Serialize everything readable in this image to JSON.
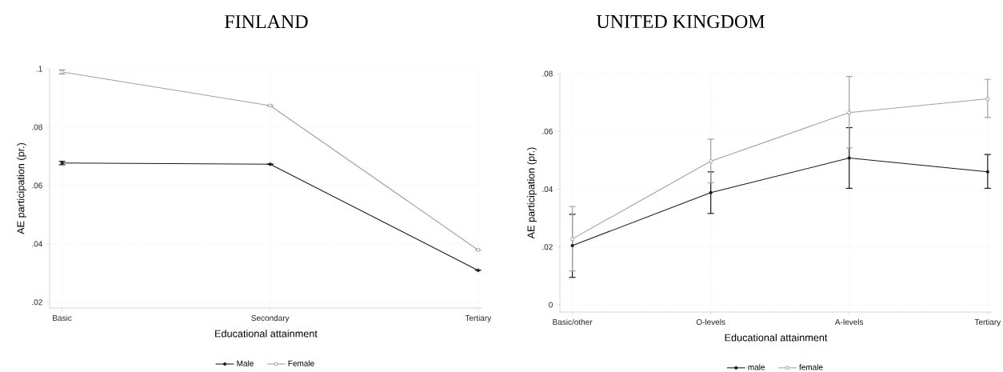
{
  "chart_data": [
    {
      "type": "line",
      "title": "FINLAND",
      "xlabel": "Educational attainment",
      "ylabel": "AE participation (pr.)",
      "categories": [
        "Basic",
        "Secondary",
        "Tertiary"
      ],
      "series": [
        {
          "name": "Male",
          "color": "#1a1a1a",
          "marker": "circle",
          "values": [
            0.0677,
            0.0673,
            0.0309
          ],
          "errors": [
            0.0006,
            null,
            null
          ]
        },
        {
          "name": "Female",
          "color": "#a0a0a0",
          "marker": "square",
          "values": [
            0.0989,
            0.0874,
            0.0379
          ],
          "errors": [
            0.0007,
            null,
            null
          ]
        }
      ],
      "ylim": [
        0.018,
        0.1
      ],
      "yticks": [
        {
          "value": 0.02,
          "label": ".02"
        },
        {
          "value": 0.04,
          "label": ".04"
        },
        {
          "value": 0.06,
          "label": ".06"
        },
        {
          "value": 0.08,
          "label": ".08"
        },
        {
          "value": 0.1,
          "label": ".1"
        }
      ],
      "grid": true,
      "legend": "bottom",
      "line_style": "solid"
    },
    {
      "type": "line",
      "title": "UNITED KINGDOM",
      "xlabel": "Educational attainment",
      "ylabel": "AE participation (pr.)",
      "categories": [
        "Basic/other",
        "O-levels",
        "A-levels",
        "Tertiary"
      ],
      "series": [
        {
          "name": "male",
          "color": "#1a1a1a",
          "marker": "circle",
          "values": [
            0.0205,
            0.0388,
            0.0508,
            0.046
          ],
          "errors": [
            [
              0.0095,
              0.0313
            ],
            [
              0.0316,
              0.046
            ],
            [
              0.0403,
              0.0613
            ],
            [
              0.0403,
              0.052
            ]
          ]
        },
        {
          "name": "female",
          "color": "#a0a0a0",
          "marker": "square",
          "values": [
            0.0228,
            0.0497,
            0.0665,
            0.0713
          ],
          "errors": [
            [
              0.0117,
              0.034
            ],
            [
              0.0422,
              0.0573
            ],
            [
              0.0543,
              0.079
            ],
            [
              0.0648,
              0.078
            ]
          ]
        }
      ],
      "ylim": [
        -0.0025,
        0.08
      ],
      "yticks": [
        0,
        {
          "value": 0.02,
          "label": ".02"
        },
        {
          "value": 0.04,
          "label": ".04"
        },
        {
          "value": 0.06,
          "label": ".06"
        },
        {
          "value": 0.08,
          "label": ".08"
        }
      ],
      "grid": true,
      "legend": "bottom",
      "line_style": "solid"
    }
  ]
}
